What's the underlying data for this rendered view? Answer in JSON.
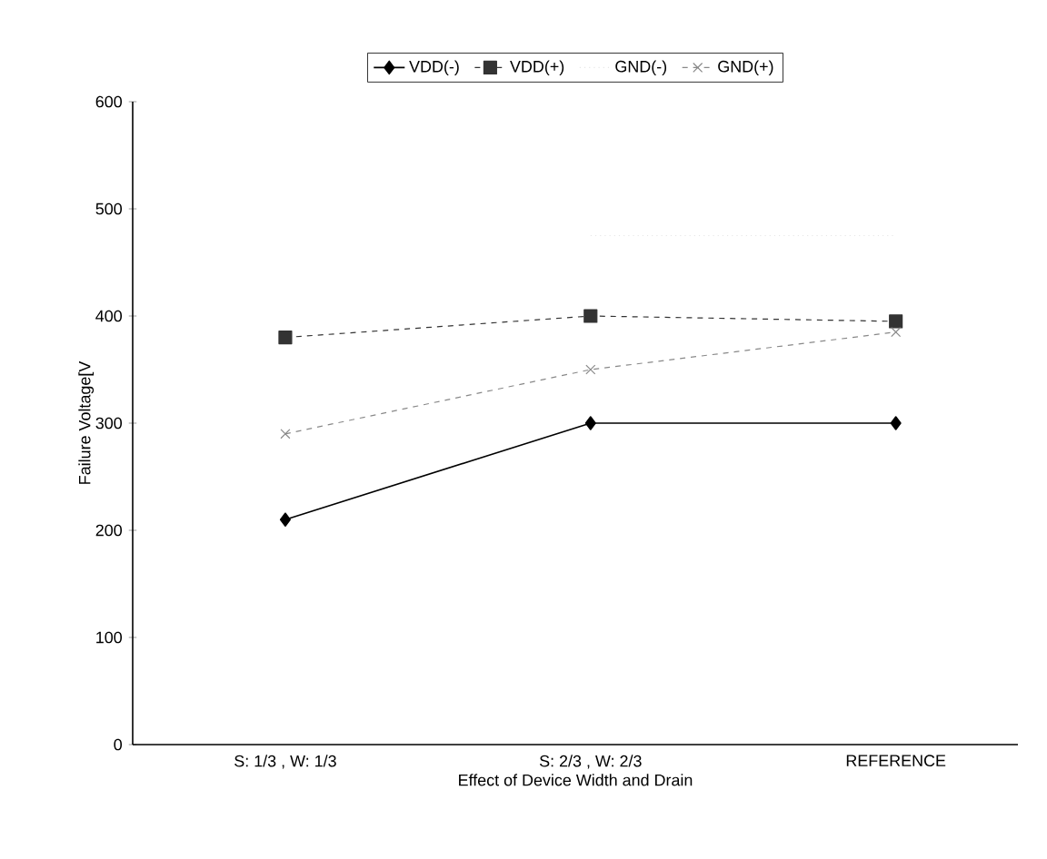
{
  "chart_data": {
    "type": "line",
    "xlabel": "Effect of Device Width and Drain",
    "ylabel": "Failure Voltage[V",
    "categories": [
      "S: 1/3 , W: 1/3",
      "S: 2/3 , W: 2/3",
      "REFERENCE"
    ],
    "series": [
      {
        "name": "VDD(-)",
        "color": "#000000",
        "values": [
          210,
          300,
          300
        ],
        "marker": "diamond",
        "line_style": "solid"
      },
      {
        "name": "VDD(+)",
        "color": "#333333",
        "values": [
          380,
          400,
          395
        ],
        "marker": "square",
        "line_style": "dashed"
      },
      {
        "name": "GND(-)",
        "color": "#e6e6e6",
        "values": [
          null,
          475,
          475
        ],
        "marker": "none",
        "line_style": "dotted"
      },
      {
        "name": "GND(+)",
        "color": "#888888",
        "values": [
          290,
          350,
          385
        ],
        "marker": "cross",
        "line_style": "dashed"
      }
    ],
    "ylim": [
      0,
      600
    ],
    "yticks": [
      0,
      100,
      200,
      300,
      400,
      500,
      600
    ],
    "legend": "top",
    "grid": false
  }
}
